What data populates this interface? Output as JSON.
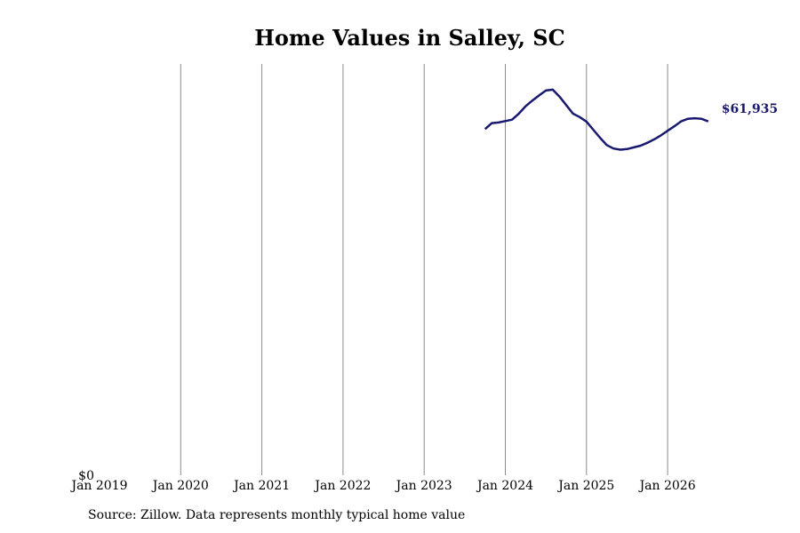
{
  "chart_data": {
    "type": "line",
    "title": "Home Values in Salley, SC",
    "xlabel": "",
    "ylabel": "",
    "x_tick_labels": [
      "Jan 2019",
      "Jan 2020",
      "Jan 2021",
      "Jan 2022",
      "Jan 2023",
      "Jan 2024",
      "Jan 2025",
      "Jan 2026"
    ],
    "y_tick_labels": [
      "$0"
    ],
    "xlim": [
      "2019-01",
      "2026-09"
    ],
    "ylim": [
      0,
      72000
    ],
    "grid": "vertical",
    "line_color": "#191970",
    "end_label": "$61,935",
    "series": [
      {
        "x": [
          "2023-10",
          "2023-11",
          "2023-12",
          "2024-01",
          "2024-02",
          "2024-03",
          "2024-04",
          "2024-05",
          "2024-06",
          "2024-07",
          "2024-08",
          "2024-09",
          "2024-10",
          "2024-11",
          "2024-12",
          "2025-01",
          "2025-02",
          "2025-03",
          "2025-04",
          "2025-05",
          "2025-06",
          "2025-07",
          "2025-08",
          "2025-09",
          "2025-10",
          "2025-11",
          "2025-12",
          "2026-01",
          "2026-02",
          "2026-03",
          "2026-04",
          "2026-05",
          "2026-06",
          "2026-07"
        ],
        "values": [
          60600,
          61650,
          61750,
          62000,
          62250,
          63300,
          64600,
          65600,
          66500,
          67350,
          67500,
          66300,
          64800,
          63300,
          62700,
          61900,
          60500,
          59100,
          57800,
          57200,
          57000,
          57100,
          57400,
          57700,
          58200,
          58800,
          59500,
          60300,
          61100,
          61950,
          62400,
          62500,
          62400,
          61935
        ]
      }
    ]
  },
  "footer": {
    "source_text": "Source: Zillow. Data represents monthly typical home value"
  }
}
